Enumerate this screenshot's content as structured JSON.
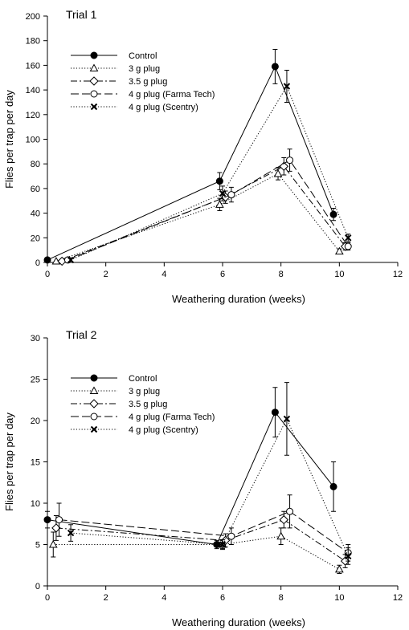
{
  "chart_data": [
    {
      "type": "line",
      "title": "Trial 1",
      "xlabel": "Weathering duration (weeks)",
      "ylabel": "Flies per trap per day",
      "xlim": [
        0,
        12
      ],
      "ylim": [
        0,
        200
      ],
      "xticks": [
        0,
        2,
        4,
        6,
        8,
        10,
        12
      ],
      "yticks": [
        0,
        20,
        40,
        60,
        80,
        100,
        120,
        140,
        160,
        180,
        200
      ],
      "legend_position": "top-left",
      "grid": false,
      "series": [
        {
          "name": "Control",
          "marker": "filled-circle",
          "dash": "solid",
          "x": [
            0,
            5.9,
            7.8,
            9.8
          ],
          "y": [
            2,
            66,
            159,
            39
          ],
          "err": [
            0,
            7,
            14,
            5
          ]
        },
        {
          "name": "3 g plug",
          "marker": "open-triangle",
          "dash": "dotted",
          "x": [
            0.3,
            5.9,
            7.9,
            10.0
          ],
          "y": [
            1,
            47,
            72,
            9
          ],
          "err": [
            0,
            5,
            5,
            2
          ]
        },
        {
          "name": "3.5 g plug",
          "marker": "open-diamond",
          "dash": "dashdot",
          "x": [
            0.5,
            6.1,
            8.1,
            10.2
          ],
          "y": [
            1,
            53,
            78,
            13
          ],
          "err": [
            0,
            5,
            7,
            3
          ]
        },
        {
          "name": "4 g plug (Farma Tech)",
          "marker": "open-circle",
          "dash": "longdash",
          "x": [
            0.7,
            6.3,
            8.3,
            10.3
          ],
          "y": [
            2,
            55,
            83,
            13
          ],
          "err": [
            0,
            6,
            9,
            3
          ]
        },
        {
          "name": "4 g plug (Scentry)",
          "marker": "cross",
          "dash": "dotted",
          "x": [
            0.8,
            6.0,
            8.2,
            10.3
          ],
          "y": [
            2,
            56,
            143,
            20
          ],
          "err": [
            0,
            6,
            13,
            3
          ]
        }
      ]
    },
    {
      "type": "line",
      "title": "Trial 2",
      "xlabel": "Weathering duration (weeks)",
      "ylabel": "Flies per trap per day",
      "xlim": [
        0,
        12
      ],
      "ylim": [
        0,
        30
      ],
      "xticks": [
        0,
        2,
        4,
        6,
        8,
        10,
        12
      ],
      "yticks": [
        0,
        5,
        10,
        15,
        20,
        25,
        30
      ],
      "legend_position": "top-left",
      "grid": false,
      "series": [
        {
          "name": "Control",
          "marker": "filled-circle",
          "dash": "solid",
          "x": [
            0,
            5.8,
            7.8,
            9.8
          ],
          "y": [
            8,
            5,
            21,
            12
          ],
          "err": [
            1,
            0.5,
            3,
            3
          ]
        },
        {
          "name": "3 g plug",
          "marker": "open-triangle",
          "dash": "dotted",
          "x": [
            0.2,
            6.0,
            8.0,
            10.0
          ],
          "y": [
            5,
            5,
            6,
            2
          ],
          "err": [
            1.5,
            0.5,
            1,
            0.5
          ]
        },
        {
          "name": "3.5 g plug",
          "marker": "open-diamond",
          "dash": "dashdot",
          "x": [
            0.3,
            6.1,
            8.1,
            10.2
          ],
          "y": [
            7,
            5.5,
            8,
            3
          ],
          "err": [
            1.5,
            0.8,
            1,
            0.8
          ]
        },
        {
          "name": "4 g plug (Farma Tech)",
          "marker": "open-circle",
          "dash": "longdash",
          "x": [
            0.4,
            6.3,
            8.3,
            10.3
          ],
          "y": [
            8,
            6,
            9,
            4
          ],
          "err": [
            2,
            1,
            2,
            1
          ]
        },
        {
          "name": "4 g plug (Scentry)",
          "marker": "cross",
          "dash": "dotted",
          "x": [
            0.8,
            6.0,
            8.2,
            10.3
          ],
          "y": [
            6.4,
            5,
            20.2,
            3.6
          ],
          "err": [
            1,
            0.6,
            4.4,
            1
          ]
        }
      ]
    }
  ]
}
